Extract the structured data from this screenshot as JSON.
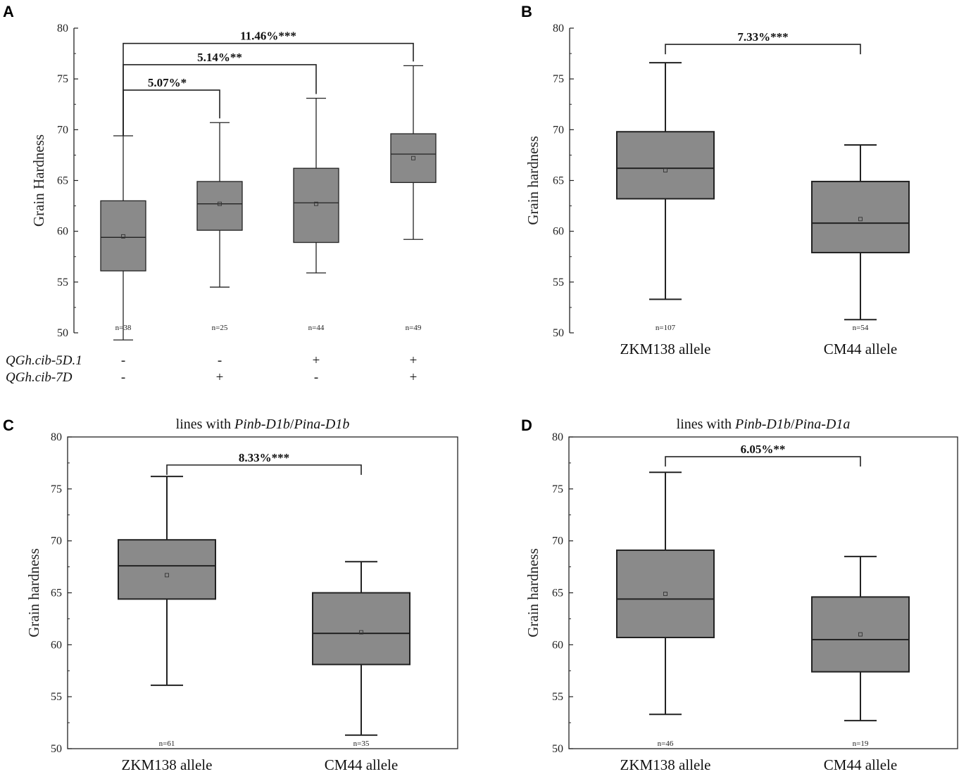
{
  "chart_data": [
    {
      "panel": "A",
      "type": "box",
      "title": "",
      "ylabel": "Grain Hardness",
      "ylim": [
        50,
        80
      ],
      "yticks": [
        50,
        55,
        60,
        65,
        70,
        75,
        80
      ],
      "boxes": [
        {
          "n": "n=38",
          "min": 49.3,
          "q1": 56.1,
          "median": 59.4,
          "mean": 59.5,
          "q3": 63.0,
          "max": 69.4
        },
        {
          "n": "n=25",
          "min": 54.5,
          "q1": 60.1,
          "median": 62.7,
          "mean": 62.7,
          "q3": 64.9,
          "max": 70.7
        },
        {
          "n": "n=44",
          "min": 55.9,
          "q1": 58.9,
          "median": 62.8,
          "mean": 62.7,
          "q3": 66.2,
          "max": 73.1
        },
        {
          "n": "n=49",
          "min": 59.2,
          "q1": 64.8,
          "median": 67.6,
          "mean": 67.2,
          "q3": 69.6,
          "max": 76.3
        }
      ],
      "genotype_rows": [
        {
          "label": "QGh.cib-5D.1",
          "signs": [
            "-",
            "-",
            "+",
            "+"
          ]
        },
        {
          "label": "QGh.cib-7D",
          "signs": [
            "-",
            "+",
            "-",
            "+"
          ]
        }
      ],
      "significance": [
        {
          "from": 0,
          "to": 1,
          "y": 73.9,
          "label": "5.07%*"
        },
        {
          "from": 0,
          "to": 2,
          "y": 76.4,
          "label": "5.14%**"
        },
        {
          "from": 0,
          "to": 3,
          "y": 78.5,
          "label": "11.46%***"
        }
      ]
    },
    {
      "panel": "B",
      "type": "box",
      "title": "",
      "ylabel": "Grain hardness",
      "ylim": [
        50,
        80
      ],
      "yticks": [
        50,
        55,
        60,
        65,
        70,
        75,
        80
      ],
      "categories": [
        "ZKM138 allele",
        "CM44 allele"
      ],
      "boxes": [
        {
          "n": "n=107",
          "min": 53.3,
          "q1": 63.2,
          "median": 66.2,
          "mean": 66.0,
          "q3": 69.8,
          "max": 76.6
        },
        {
          "n": "n=54",
          "min": 51.3,
          "q1": 57.9,
          "median": 60.8,
          "mean": 61.2,
          "q3": 64.9,
          "max": 68.5
        }
      ],
      "significance": [
        {
          "from": 0,
          "to": 1,
          "y": 78.4,
          "label": "7.33%***"
        }
      ]
    },
    {
      "panel": "C",
      "type": "box",
      "title_prefix": "lines with ",
      "title_gene1": "Pinb-D1b",
      "title_sep": "/",
      "title_gene2": "Pina-D1b",
      "ylabel": "Grain hardness",
      "ylim": [
        50,
        80
      ],
      "yticks": [
        50,
        55,
        60,
        65,
        70,
        75,
        80
      ],
      "categories": [
        "ZKM138 allele",
        "CM44 allele"
      ],
      "boxes": [
        {
          "n": "n=61",
          "min": 56.1,
          "q1": 64.4,
          "median": 67.6,
          "mean": 66.7,
          "q3": 70.1,
          "max": 76.2
        },
        {
          "n": "n=35",
          "min": 51.3,
          "q1": 58.1,
          "median": 61.1,
          "mean": 61.2,
          "q3": 65.0,
          "max": 68.0
        }
      ],
      "significance": [
        {
          "from": 0,
          "to": 1,
          "y": 77.3,
          "label": "8.33%***"
        }
      ]
    },
    {
      "panel": "D",
      "type": "box",
      "title_prefix": "lines with ",
      "title_gene1": "Pinb-D1b",
      "title_sep": "/",
      "title_gene2": "Pina-D1a",
      "ylabel": "Grain hardness",
      "ylim": [
        50,
        80
      ],
      "yticks": [
        50,
        55,
        60,
        65,
        70,
        75,
        80
      ],
      "categories": [
        "ZKM138 allele",
        "CM44 allele"
      ],
      "boxes": [
        {
          "n": "n=46",
          "min": 53.3,
          "q1": 60.7,
          "median": 64.4,
          "mean": 64.9,
          "q3": 69.1,
          "max": 76.6
        },
        {
          "n": "n=19",
          "min": 52.7,
          "q1": 57.4,
          "median": 60.5,
          "mean": 61.0,
          "q3": 64.6,
          "max": 68.5
        }
      ],
      "significance": [
        {
          "from": 0,
          "to": 1,
          "y": 78.1,
          "label": "6.05%**"
        }
      ]
    }
  ],
  "colors": {
    "box_fill": "#8a8a8a",
    "line": "#222222"
  }
}
